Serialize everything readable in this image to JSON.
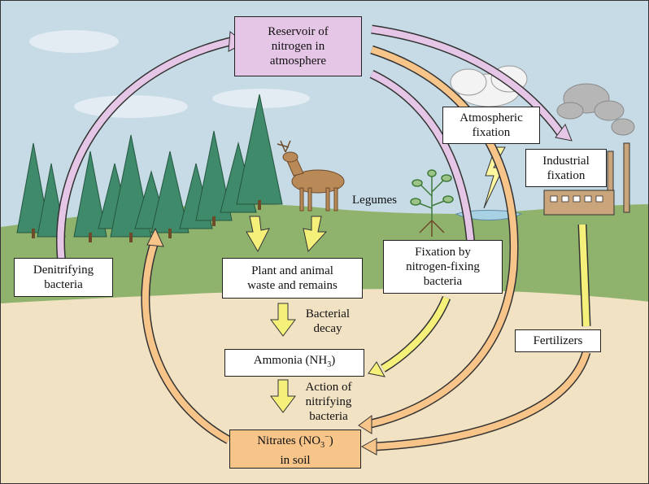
{
  "nodes": {
    "reservoir": [
      "Reservoir of",
      "nitrogen in",
      "atmosphere"
    ],
    "atmospheric_fixation": [
      "Atmospheric",
      "fixation"
    ],
    "industrial_fixation": [
      "Industrial",
      "fixation"
    ],
    "denitrifying_bacteria": [
      "Denitrifying",
      "bacteria"
    ],
    "plant_animal_waste": [
      "Plant and animal",
      "waste and remains"
    ],
    "fixation_bacteria": [
      "Fixation by",
      "nitrogen-fixing",
      "bacteria"
    ],
    "ammonia": {
      "text": "Ammonia (NH",
      "sub": "3",
      "close": ")"
    },
    "nitrates": {
      "line1_text": "Nitrates (NO",
      "sub": "3",
      "sup": "−",
      "close": ")",
      "line2": "in soil"
    },
    "fertilizers": "Fertilizers"
  },
  "labels": {
    "legumes": "Legumes",
    "bacterial_decay": [
      "Bacterial",
      "decay"
    ],
    "nitrification": [
      "Action of",
      "nitrifying",
      "bacteria"
    ]
  },
  "colors": {
    "sky": "#c6dbe6",
    "ground": "#8fb36d",
    "soil": "#f2e2c4",
    "pink_arrow": "#e6c6e6",
    "orange_arrow": "#f7c48a",
    "yellow_arrow": "#f4f07a",
    "tree": "#3f8a6a"
  },
  "icons": [
    "conifer-tree-icon",
    "deer-icon",
    "legume-plant-icon",
    "cloud-icon",
    "lightning-icon",
    "factory-icon",
    "smoke-icon"
  ]
}
